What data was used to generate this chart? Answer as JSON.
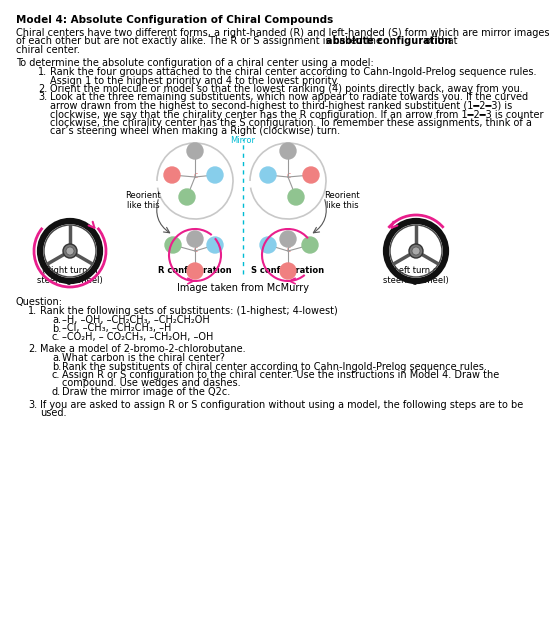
{
  "title": "Model 4: Absolute Configuration of Chiral Compounds",
  "para1_lines": [
    "Chiral centers have two different forms, a right-handed (R) and left-handed (S) form which are mirror images",
    "of each other but are not exactly alike. The R or S assignment is called the ",
    "absolute configuration",
    " of that",
    "chiral center."
  ],
  "para2_intro": "To determine the absolute configuration of a chiral center using a model:",
  "step1_lines": [
    "Rank the four groups attached to the chiral center according to Cahn-Ingold-Prelog sequence rules.",
    "Assign 1 to the highest priority and 4 to the lowest priority."
  ],
  "step2": "Orient the molecule or model so that the lowest ranking (4) points directly back, away from you.",
  "step3_lines": [
    "Look at the three remaining substituents, which now appear to radiate towards you. If the curved",
    "arrow drawn from the highest to second-highest to third-highest ranked substituent (1━2━3) is",
    "clockwise, we say that the chirality center has the R configuration. If an arrow from 1━2━3 is counter",
    "clockwise, the chirality center has the S configuration. To remember these assignments, think of a",
    "car’s steering wheel when making a Right (clockwise) turn."
  ],
  "mirror_label": "Mirror",
  "reorient_label": "Reorient\nlike this",
  "r_config_label": "R configuration",
  "s_config_label": "S configuration",
  "right_turn_label": "(Right turn of\nsteering wheel)",
  "left_turn_label": "(Left turn of\nsteering wheel)",
  "mcmurry_label": "Image taken from McMurry",
  "q_header": "Question:",
  "q1_header": "Rank the following sets of substituents: (1-highest; 4-lowest)",
  "q1a": "–H, –OH, –CH₂CH₃, –CH₂CH₂OH",
  "q1b": "–Cl, –CH₃, –CH₂CH₃, –H",
  "q1c": "–CO₂H, – CO₂CH₃, –CH₂OH, –OH",
  "q2_header": "Make a model of 2-bromo-2-chlorobutane.",
  "q2a": "What carbon is the chiral center?",
  "q2b": "Rank the substituents of chiral center according to Cahn-Ingold-Prelog sequence rules.",
  "q2c_lines": [
    "Assign R or S configuration to the chiral center. Use the instructions in Model 4. Draw the",
    "compound. Use wedges and dashes."
  ],
  "q2d": "Draw the mirror image of the Q2c.",
  "q3_lines": [
    "If you are asked to assign R or S configuration without using a model, the following steps are to be",
    "used."
  ],
  "bg_color": "#ffffff",
  "pink": "#f08080",
  "green": "#90c490",
  "blue": "#87ceeb",
  "gray_node": "#aaaaaa",
  "mirror_color": "#00bcd4",
  "pink_arrow": "#e91e8c",
  "sw_outer": "#2a2a2a",
  "sw_inner": "#888888",
  "sw_spoke": "#555555"
}
